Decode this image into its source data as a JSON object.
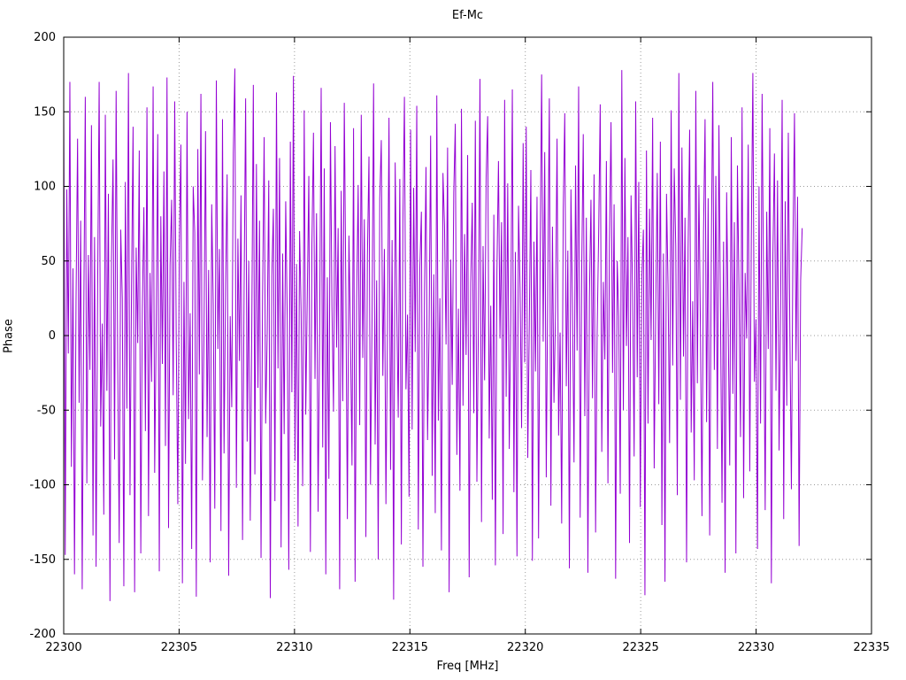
{
  "chart_data": {
    "type": "line",
    "title": "Ef-Mc",
    "xlabel": "Freq [MHz]",
    "ylabel": "Phase",
    "xlim": [
      22300,
      22335
    ],
    "ylim": [
      -200,
      200
    ],
    "x_ticks": [
      22300,
      22305,
      22310,
      22315,
      22320,
      22325,
      22330,
      22335
    ],
    "y_ticks": [
      -200,
      -150,
      -100,
      -50,
      0,
      50,
      100,
      150,
      200
    ],
    "grid": true,
    "legend": "none",
    "colors": {
      "line": "#9400D3",
      "grid": "#9a9a9a",
      "frame": "#000000"
    },
    "series": [
      {
        "name": "Ef-Mc phase",
        "color": "#9400D3",
        "x_start": 22300.0,
        "x_step": 0.0668,
        "y_values": [
          155,
          -147,
          98,
          -12,
          170,
          -88,
          45,
          -160,
          23,
          132,
          -45,
          77,
          -170,
          12,
          160,
          -99,
          54,
          -23,
          141,
          -134,
          66,
          -155,
          29,
          170,
          -61,
          8,
          -120,
          148,
          -37,
          95,
          -178,
          52,
          118,
          -83,
          164,
          -14,
          -139,
          71,
          25,
          -168,
          103,
          -49,
          176,
          -107,
          33,
          140,
          -172,
          59,
          -5,
          124,
          -146,
          18,
          86,
          -64,
          153,
          -121,
          42,
          -31,
          167,
          -92,
          7,
          135,
          -158,
          80,
          -19,
          110,
          -74,
          173,
          -129,
          47,
          91,
          -40,
          157,
          -3,
          -113,
          62,
          128,
          -166,
          36,
          -86,
          150,
          -56,
          15,
          -143,
          100,
          69,
          -175,
          125,
          -26,
          162,
          -97,
          3,
          137,
          -68,
          44,
          -152,
          88,
          21,
          -116,
          171,
          -9,
          58,
          -131,
          145,
          -79,
          34,
          108,
          -161,
          13,
          -48,
          122,
          179,
          -102,
          65,
          -17,
          94,
          -137,
          30,
          159,
          -71,
          50,
          -124,
          6,
          168,
          -93,
          115,
          -35,
          77,
          -149,
          26,
          133,
          -59,
          1,
          104,
          -176,
          40,
          85,
          -111,
          163,
          -22,
          119,
          -142,
          55,
          -66,
          90,
          10,
          -157,
          130,
          -38,
          174,
          -84,
          48,
          -128,
          70,
          16,
          -101,
          151,
          -53,
          27,
          107,
          -145,
          61,
          136,
          -29,
          82,
          -118,
          5,
          166,
          -75,
          112,
          -160,
          39,
          -96,
          143,
          19,
          -51,
          127,
          -8,
          72,
          -170,
          97,
          -44,
          156,
          31,
          -123,
          67,
          1,
          -87,
          139,
          -165,
          24,
          101,
          -60,
          148,
          -15,
          78,
          -135,
          53,
          120,
          -100,
          11,
          169,
          -73,
          37,
          -150,
          92,
          131,
          -27,
          58,
          -113,
          2,
          146,
          -90,
          64,
          -177,
          116,
          22,
          -55,
          105,
          -140,
          75,
          160,
          -36,
          14,
          -108,
          138,
          -63,
          99,
          -11,
          154,
          -130,
          46,
          83,
          -155,
          28,
          113,
          -70,
          4,
          134,
          -94,
          41,
          -119,
          161,
          -57,
          25,
          -144,
          109,
          74,
          -6,
          126,
          -172,
          51,
          -33,
          96,
          142,
          -80,
          18,
          -104,
          152,
          -47,
          68,
          -13,
          121,
          -162,
          35,
          89,
          -52,
          144,
          -98,
          9,
          172,
          -125,
          60,
          -30,
          106,
          147,
          -69,
          20,
          -110,
          81,
          -154,
          43,
          117,
          -2,
          76,
          -133,
          158,
          -41,
          102,
          -76,
          12,
          165,
          -105,
          56,
          -148,
          87,
          32,
          -62,
          129,
          -18,
          140,
          -82,
          7,
          111,
          -151,
          63,
          -24,
          93,
          -136,
          49,
          175,
          -4,
          123,
          -95,
          38,
          159,
          -114,
          73,
          -45,
          16,
          132,
          -67,
          2,
          -126,
          84,
          149,
          -34,
          57,
          -156,
          98,
          21,
          -85,
          114,
          -10,
          167,
          -122,
          45,
          135,
          -54,
          79,
          -159,
          26,
          91,
          -42,
          108,
          -132,
          1,
          70,
          155,
          -78,
          36,
          -16,
          117,
          -99,
          62,
          143,
          -25,
          88,
          -163,
          50,
          13,
          -106,
          178,
          -50,
          119,
          -7,
          66,
          -139,
          94,
          29,
          -81,
          157,
          -28,
          103,
          -115,
          40,
          71,
          -174,
          124,
          -59,
          85,
          -3,
          146,
          -89,
          17,
          109,
          -46,
          130,
          -127,
          55,
          -165,
          95,
          34,
          -72,
          151,
          -20,
          112,
          60,
          -107,
          176,
          -43,
          126,
          -14,
          79,
          -152,
          58,
          138,
          -65,
          23,
          -97,
          164,
          -32,
          101,
          5,
          -121,
          69,
          145,
          -58,
          92,
          -134,
          48,
          170,
          -23,
          107,
          -76,
          141,
          15,
          -112,
          63,
          -159,
          96,
          8,
          -87,
          133,
          -39,
          76,
          -146,
          114,
          31,
          -68,
          153,
          -109,
          42,
          -2,
          128,
          -91,
          65,
          176,
          -31,
          11,
          -143,
          100,
          -59,
          162,
          27,
          -117,
          83,
          -9,
          139,
          -166,
          54,
          122,
          -37,
          104,
          -77,
          20,
          158,
          -123,
          90,
          -47,
          136,
          3,
          -103,
          61,
          149,
          -17,
          93,
          -141,
          37,
          72
        ]
      }
    ]
  }
}
